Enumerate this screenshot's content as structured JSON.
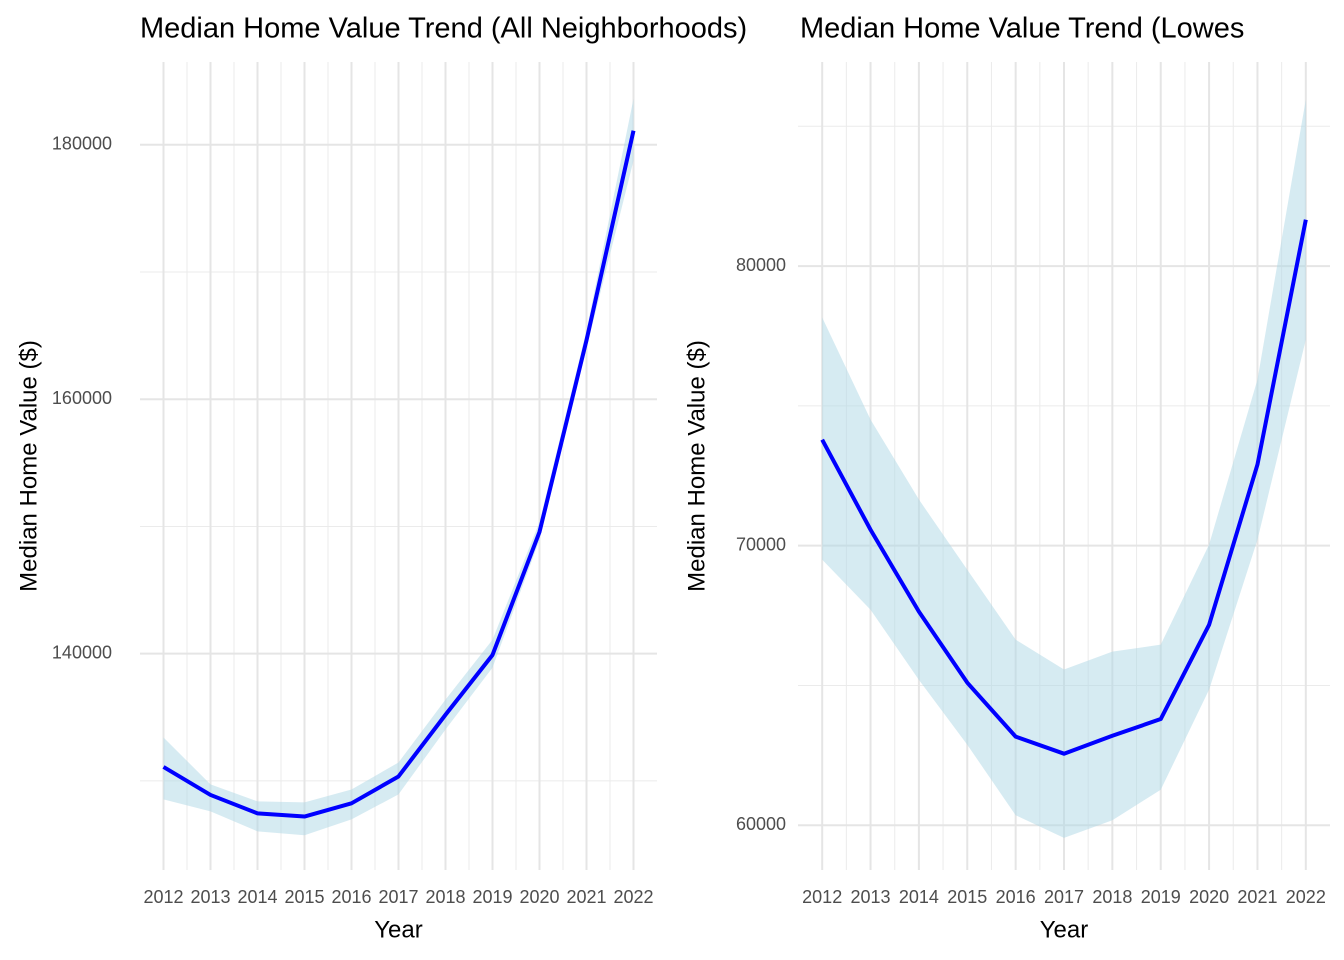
{
  "chart_data": [
    {
      "type": "line",
      "title": "Median Home Value Trend (All Neighborhoods)",
      "x_label": "Year",
      "y_label": "Median Home Value ($)",
      "x": [
        2012,
        2013,
        2014,
        2015,
        2016,
        2017,
        2018,
        2019,
        2020,
        2021,
        2022
      ],
      "xlim": [
        2011.5,
        2022.5
      ],
      "xticks": [
        2012,
        2013,
        2014,
        2015,
        2016,
        2017,
        2018,
        2019,
        2020,
        2021,
        2022
      ],
      "ylim": [
        123000,
        186500
      ],
      "yticks": [
        140000,
        160000,
        180000
      ],
      "y_minor_grid": [
        130000,
        150000,
        170000
      ],
      "grid": true,
      "series": [
        {
          "color": "#0000ff",
          "values": [
            131100,
            128900,
            127450,
            127200,
            128240,
            130350,
            135200,
            139900,
            149570,
            164630,
            181100
          ],
          "band": {
            "color": "#add8e6",
            "opacity": 0.5,
            "lower": [
              128550,
              127610,
              126040,
              125730,
              126980,
              128940,
              134040,
              138900,
              148940,
              164000,
              178745
            ],
            "upper": [
              133410,
              129730,
              128390,
              128310,
              129330,
              131450,
              136390,
              141100,
              150350,
              165410,
              183610
            ]
          }
        }
      ]
    },
    {
      "type": "line",
      "title": "Median Home Value Trend (Lowes",
      "x_label": "Year",
      "y_label": "Median Home Value ($)",
      "x": [
        2012,
        2013,
        2014,
        2015,
        2016,
        2017,
        2018,
        2019,
        2020,
        2021,
        2022
      ],
      "xlim": [
        2011.5,
        2022.5
      ],
      "xticks": [
        2012,
        2013,
        2014,
        2015,
        2016,
        2017,
        2018,
        2019,
        2020,
        2021,
        2022
      ],
      "ylim": [
        58400,
        87300
      ],
      "yticks": [
        60000,
        70000,
        80000
      ],
      "y_minor_grid": [
        65000,
        75000,
        85000
      ],
      "grid": true,
      "series": [
        {
          "color": "#0000ff",
          "values": [
            73790,
            70570,
            67640,
            65100,
            63170,
            62560,
            63200,
            63800,
            67170,
            72900,
            81660
          ],
          "band": {
            "color": "#add8e6",
            "opacity": 0.5,
            "lower": [
              69500,
              67710,
              65200,
              62880,
              60360,
              59550,
              60180,
              61270,
              64850,
              70210,
              77370
            ],
            "upper": [
              78160,
              74510,
              71650,
              69140,
              66640,
              65570,
              66210,
              66460,
              70040,
              75940,
              85960
            ]
          }
        }
      ]
    }
  ]
}
